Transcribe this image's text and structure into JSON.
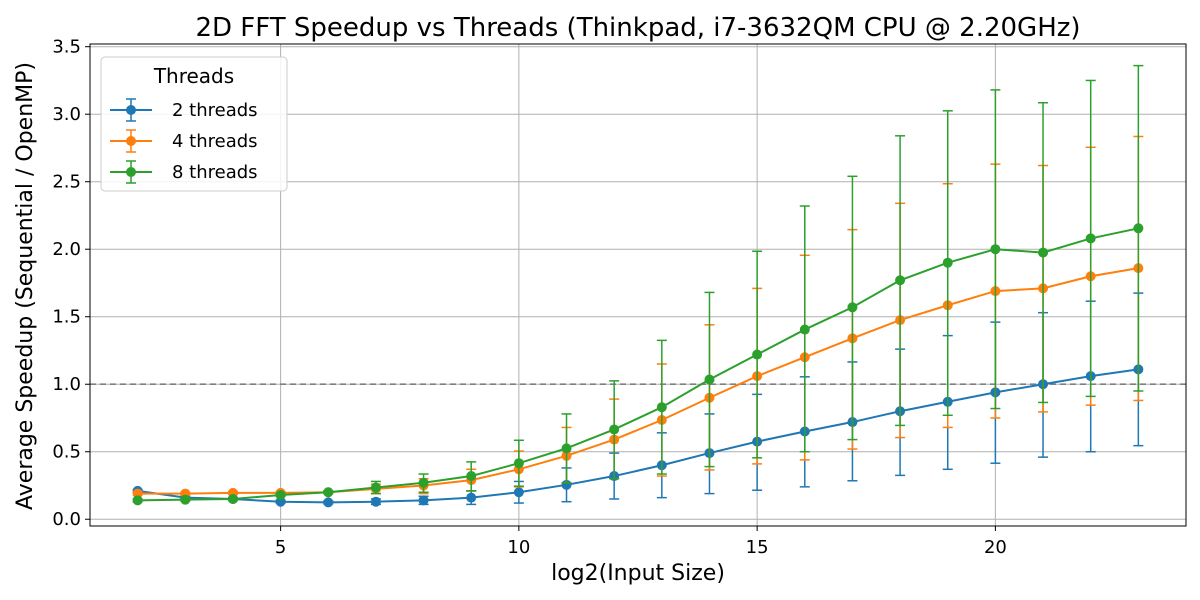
{
  "chart_data": {
    "type": "line",
    "title": "2D FFT Speedup vs Threads (Thinkpad, i7-3632QM CPU @ 2.20GHz)",
    "xlabel": "log2(Input Size)",
    "ylabel": "Average Speedup (Sequential / OpenMP)",
    "xlim": [
      1.0,
      24.0
    ],
    "ylim": [
      -0.05,
      3.52
    ],
    "xticks": [
      5,
      10,
      15,
      20
    ],
    "yticks": [
      0.0,
      0.5,
      1.0,
      1.5,
      2.0,
      2.5,
      3.0,
      3.5
    ],
    "ytick_labels": [
      "0.0",
      "0.5",
      "1.0",
      "1.5",
      "2.0",
      "2.5",
      "3.0",
      "3.5"
    ],
    "grid": true,
    "reference_line": {
      "y": 1.0,
      "style": "dashed",
      "color": "#808080"
    },
    "legend": {
      "title": "Threads",
      "placement": "top-left"
    },
    "x": [
      2,
      3,
      4,
      5,
      6,
      7,
      8,
      9,
      10,
      11,
      12,
      13,
      14,
      15,
      16,
      17,
      18,
      19,
      20,
      21,
      22,
      23
    ],
    "series": [
      {
        "name": "2 threads",
        "color": "#1f77b4",
        "values": [
          0.21,
          0.16,
          0.15,
          0.13,
          0.125,
          0.13,
          0.14,
          0.16,
          0.2,
          0.255,
          0.32,
          0.4,
          0.49,
          0.575,
          0.65,
          0.72,
          0.8,
          0.87,
          0.94,
          1.0,
          1.06,
          1.11
        ],
        "err_low": [
          0.2,
          0.15,
          0.14,
          0.12,
          0.115,
          0.11,
          0.11,
          0.11,
          0.12,
          0.13,
          0.15,
          0.16,
          0.19,
          0.215,
          0.24,
          0.285,
          0.325,
          0.37,
          0.415,
          0.46,
          0.5,
          0.545
        ],
        "err_high": [
          0.22,
          0.17,
          0.16,
          0.14,
          0.135,
          0.15,
          0.17,
          0.21,
          0.28,
          0.38,
          0.49,
          0.64,
          0.78,
          0.925,
          1.055,
          1.165,
          1.26,
          1.36,
          1.46,
          1.53,
          1.615,
          1.675
        ]
      },
      {
        "name": "4 threads",
        "color": "#ff7f0e",
        "values": [
          0.19,
          0.19,
          0.195,
          0.195,
          0.2,
          0.225,
          0.25,
          0.29,
          0.37,
          0.47,
          0.59,
          0.735,
          0.9,
          1.06,
          1.2,
          1.34,
          1.475,
          1.585,
          1.69,
          1.71,
          1.8,
          1.86
        ],
        "err_low": [
          0.18,
          0.18,
          0.185,
          0.185,
          0.19,
          0.19,
          0.19,
          0.21,
          0.24,
          0.27,
          0.3,
          0.32,
          0.365,
          0.41,
          0.44,
          0.52,
          0.605,
          0.68,
          0.75,
          0.795,
          0.845,
          0.88
        ],
        "err_high": [
          0.2,
          0.2,
          0.205,
          0.205,
          0.21,
          0.26,
          0.3,
          0.37,
          0.505,
          0.68,
          0.89,
          1.15,
          1.44,
          1.71,
          1.955,
          2.145,
          2.34,
          2.485,
          2.63,
          2.62,
          2.755,
          2.835
        ]
      },
      {
        "name": "8 threads",
        "color": "#2ca02c",
        "values": [
          0.14,
          0.145,
          0.15,
          0.18,
          0.2,
          0.235,
          0.27,
          0.32,
          0.415,
          0.525,
          0.665,
          0.83,
          1.035,
          1.22,
          1.405,
          1.57,
          1.77,
          1.9,
          2.0,
          1.975,
          2.08,
          2.155
        ],
        "err_low": [
          0.13,
          0.135,
          0.14,
          0.17,
          0.19,
          0.19,
          0.2,
          0.21,
          0.245,
          0.27,
          0.3,
          0.335,
          0.39,
          0.455,
          0.5,
          0.59,
          0.695,
          0.77,
          0.82,
          0.865,
          0.91,
          0.95
        ],
        "err_high": [
          0.15,
          0.155,
          0.16,
          0.19,
          0.21,
          0.28,
          0.335,
          0.425,
          0.585,
          0.78,
          1.025,
          1.325,
          1.68,
          1.985,
          2.32,
          2.54,
          2.84,
          3.025,
          3.18,
          3.085,
          3.25,
          3.36
        ]
      }
    ]
  }
}
